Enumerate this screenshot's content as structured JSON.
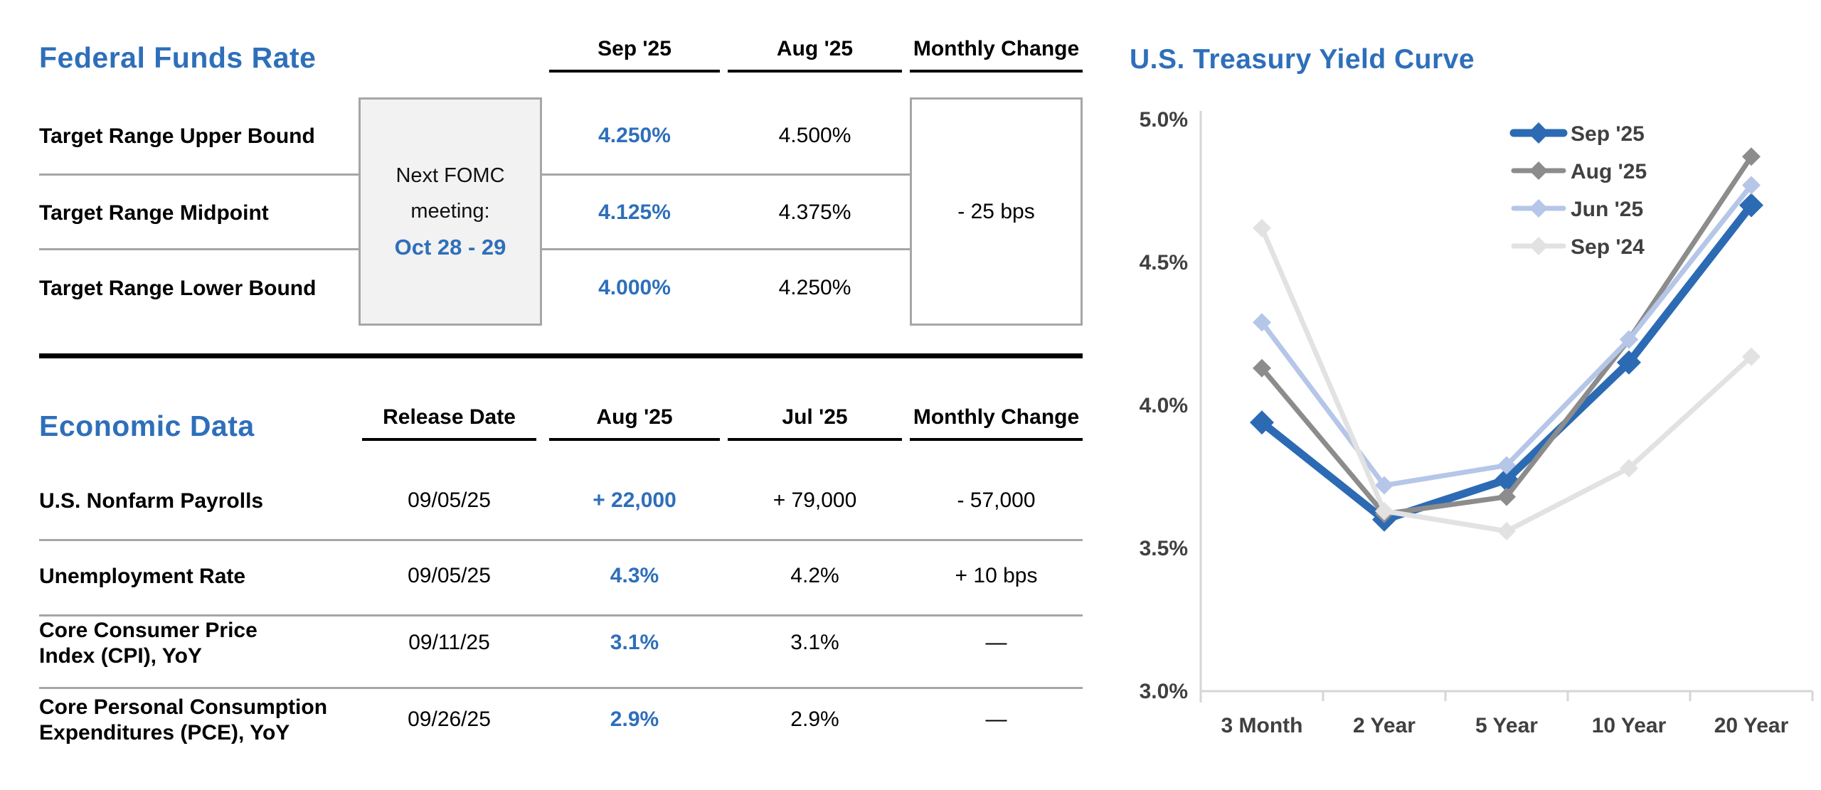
{
  "colors": {
    "accent": "#2E6FBA",
    "separator": "#A6A6A6",
    "box_fill": "#F2F2F2",
    "box_border": "#A6A6A6",
    "tick_label": "#404040",
    "axis": "#D6D6D6"
  },
  "fed": {
    "title": "Federal Funds Rate",
    "columns": [
      "Sep '25",
      "Aug '25",
      "Monthly Change"
    ],
    "rows": [
      {
        "label": "Target Range Upper Bound",
        "sep25": "4.250%",
        "aug25": "4.500%"
      },
      {
        "label": "Target Range Midpoint",
        "sep25": "4.125%",
        "aug25": "4.375%"
      },
      {
        "label": "Target Range Lower Bound",
        "sep25": "4.000%",
        "aug25": "4.250%"
      }
    ],
    "monthly_change": "- 25 bps",
    "fomc_note": {
      "line1": "Next FOMC",
      "line2": "meeting:",
      "date": "Oct 28 - 29"
    }
  },
  "econ": {
    "title": "Economic Data",
    "columns": [
      "Release Date",
      "Aug '25",
      "Jul '25",
      "Monthly Change"
    ],
    "rows": [
      {
        "label": "U.S. Nonfarm Payrolls",
        "release_date": "09/05/25",
        "current": "+ 22,000",
        "prior": "+ 79,000",
        "change": "- 57,000"
      },
      {
        "label": "Unemployment Rate",
        "release_date": "09/05/25",
        "current": "4.3%",
        "prior": "4.2%",
        "change": "+ 10 bps"
      },
      {
        "label": [
          "Core Consumer Price",
          "Index (CPI), YoY"
        ],
        "release_date": "09/11/25",
        "current": "3.1%",
        "prior": "3.1%",
        "change": "—"
      },
      {
        "label": [
          "Core Personal Consumption",
          "Expenditures (PCE), YoY"
        ],
        "release_date": "09/26/25",
        "current": "2.9%",
        "prior": "2.9%",
        "change": "—"
      }
    ]
  },
  "chart_data": {
    "type": "line",
    "title": "U.S. Treasury Yield Curve",
    "categories": [
      "3 Month",
      "2 Year",
      "5 Year",
      "10 Year",
      "20 Year"
    ],
    "series": [
      {
        "name": "Sep '25",
        "color": "#2C6BB3",
        "line_width": 11,
        "values": [
          3.94,
          3.6,
          3.74,
          4.15,
          4.7
        ]
      },
      {
        "name": "Aug '25",
        "color": "#8C8C8C",
        "line_width": 7,
        "values": [
          4.13,
          3.62,
          3.68,
          4.23,
          4.87
        ]
      },
      {
        "name": "Jun '25",
        "color": "#B5C6E8",
        "line_width": 7,
        "values": [
          4.29,
          3.72,
          3.79,
          4.23,
          4.77
        ]
      },
      {
        "name": "Sep '24",
        "color": "#E2E2E2",
        "line_width": 7,
        "values": [
          4.62,
          3.63,
          3.56,
          3.78,
          4.17
        ]
      }
    ],
    "ylim": [
      3.0,
      5.0
    ],
    "yticks": [
      "5.0%",
      "4.5%",
      "4.0%",
      "3.5%",
      "3.0%"
    ],
    "ytick_values": [
      5.0,
      4.5,
      4.0,
      3.5,
      3.0
    ],
    "marker": "diamond",
    "grid": false,
    "legend_position": "top-right"
  }
}
